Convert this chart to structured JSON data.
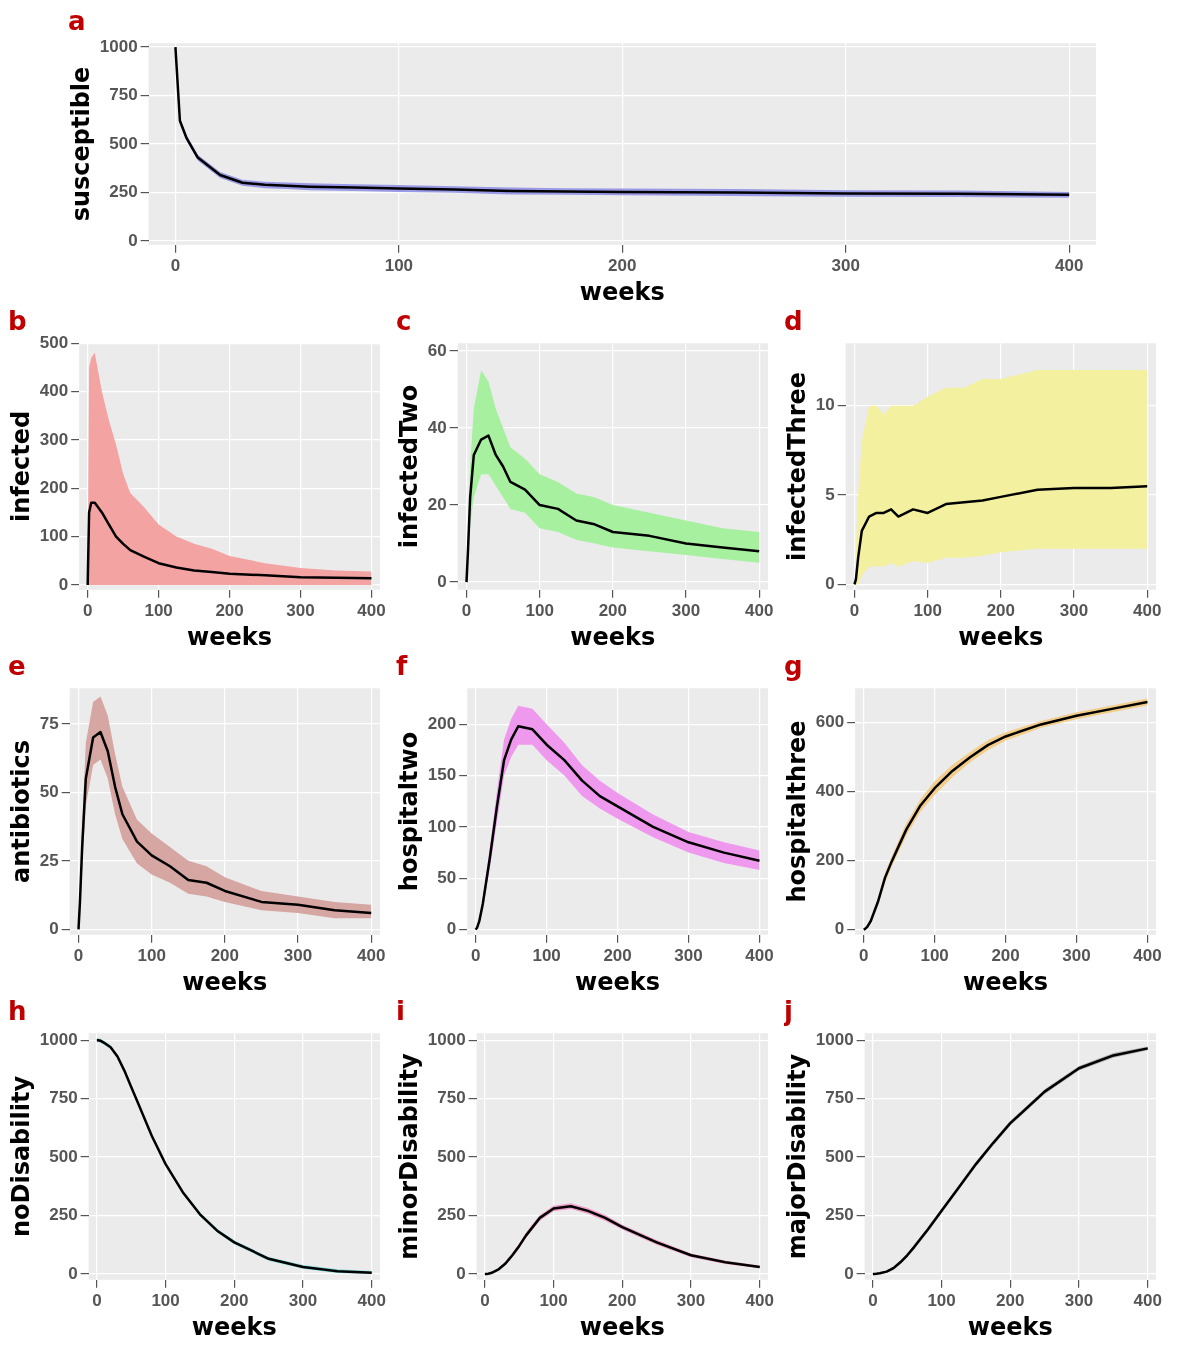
{
  "chart_data": [
    {
      "type": "line",
      "title": "a",
      "xlabel": "weeks",
      "ylabel": "susceptible",
      "x": [
        0,
        2,
        5,
        10,
        20,
        30,
        40,
        50,
        60,
        80,
        100,
        125,
        150,
        175,
        200,
        250,
        300,
        350,
        400
      ],
      "xlim": [
        -12,
        412
      ],
      "xticks": [
        0,
        100,
        200,
        300,
        400
      ],
      "ylim": [
        -20,
        1020
      ],
      "yticks": [
        0,
        250,
        500,
        750,
        1000
      ],
      "grid": true,
      "legend": false,
      "marker": "none",
      "series": [
        {
          "color": "#000000",
          "values": [
            1000,
            620,
            530,
            430,
            340,
            300,
            290,
            285,
            280,
            275,
            270,
            265,
            258,
            255,
            252,
            250,
            245,
            243,
            238
          ],
          "lower": [
            985,
            605,
            515,
            415,
            325,
            285,
            272,
            268,
            262,
            258,
            252,
            248,
            240,
            238,
            235,
            232,
            228,
            226,
            223
          ],
          "upper": [
            1000,
            635,
            545,
            445,
            355,
            315,
            305,
            302,
            298,
            292,
            288,
            282,
            275,
            272,
            270,
            268,
            262,
            260,
            253
          ]
        }
      ]
    },
    {
      "type": "line",
      "title": "b",
      "xlabel": "weeks",
      "ylabel": "infected",
      "x": [
        0,
        2,
        5,
        10,
        20,
        30,
        40,
        50,
        60,
        80,
        100,
        125,
        150,
        175,
        200,
        250,
        300,
        350,
        400
      ],
      "xlim": [
        -12,
        412
      ],
      "xticks": [
        0,
        100,
        200,
        300,
        400
      ],
      "ylim": [
        -10,
        500
      ],
      "yticks": [
        0,
        100,
        200,
        300,
        400,
        500
      ],
      "grid": true,
      "legend": false,
      "marker": "none",
      "series": [
        {
          "color": "#000000",
          "values": [
            0,
            150,
            170,
            170,
            150,
            125,
            100,
            85,
            72,
            58,
            45,
            36,
            30,
            27,
            23,
            20,
            16,
            15,
            14
          ],
          "lower": [
            0,
            0,
            0,
            0,
            0,
            0,
            0,
            0,
            0,
            0,
            0,
            0,
            0,
            0,
            0,
            0,
            0,
            0,
            0
          ],
          "upper": [
            0,
            450,
            470,
            480,
            400,
            340,
            290,
            230,
            190,
            160,
            125,
            100,
            85,
            75,
            60,
            45,
            35,
            30,
            28
          ]
        }
      ]
    },
    {
      "type": "line",
      "title": "c",
      "xlabel": "weeks",
      "ylabel": "infectedTwo",
      "x": [
        0,
        2,
        5,
        10,
        20,
        30,
        40,
        50,
        60,
        80,
        100,
        125,
        150,
        175,
        200,
        250,
        300,
        350,
        400
      ],
      "xlim": [
        -12,
        412
      ],
      "xticks": [
        0,
        100,
        200,
        300,
        400
      ],
      "ylim": [
        -2,
        62
      ],
      "yticks": [
        0,
        20,
        40,
        60
      ],
      "grid": true,
      "legend": false,
      "marker": "none",
      "series": [
        {
          "color": "#000000",
          "values": [
            0,
            8,
            22,
            33,
            37,
            38,
            33,
            30,
            26,
            24,
            20,
            19,
            16,
            15,
            13,
            12,
            10,
            9,
            8
          ],
          "lower": [
            0,
            5,
            15,
            22,
            28,
            28,
            25,
            22,
            19,
            18,
            14,
            13,
            11,
            10,
            9,
            8,
            7,
            6,
            5
          ],
          "upper": [
            0,
            12,
            30,
            45,
            55,
            52,
            45,
            40,
            35,
            32,
            28,
            26,
            23,
            22,
            20,
            18,
            16,
            14,
            13
          ]
        }
      ]
    },
    {
      "type": "line",
      "title": "d",
      "xlabel": "weeks",
      "ylabel": "infectedThree",
      "x": [
        0,
        2,
        5,
        10,
        20,
        30,
        40,
        50,
        60,
        80,
        100,
        125,
        150,
        175,
        200,
        250,
        300,
        350,
        400
      ],
      "xlim": [
        -12,
        412
      ],
      "xticks": [
        0,
        100,
        200,
        300,
        400
      ],
      "ylim": [
        -0.3,
        13.5
      ],
      "yticks": [
        0,
        5,
        10
      ],
      "grid": true,
      "legend": false,
      "marker": "none",
      "series": [
        {
          "color": "#000000",
          "values": [
            0,
            0.3,
            1.5,
            3,
            3.8,
            4,
            4,
            4.2,
            3.8,
            4.2,
            4,
            4.5,
            4.6,
            4.7,
            4.9,
            5.3,
            5.4,
            5.4,
            5.5
          ],
          "lower": [
            0,
            0,
            0,
            0.5,
            1,
            1,
            1,
            1.2,
            1,
            1.3,
            1.2,
            1.5,
            1.5,
            1.6,
            1.8,
            2,
            2,
            2,
            2
          ],
          "upper": [
            0,
            2,
            5,
            8,
            10,
            10,
            9.5,
            10,
            10,
            10,
            10.5,
            11,
            11,
            11.5,
            11.5,
            12,
            12,
            12,
            12
          ]
        }
      ]
    },
    {
      "type": "line",
      "title": "e",
      "xlabel": "weeks",
      "ylabel": "antibiotics",
      "x": [
        0,
        2,
        5,
        10,
        20,
        30,
        40,
        50,
        60,
        80,
        100,
        125,
        150,
        175,
        200,
        250,
        300,
        350,
        400
      ],
      "xlim": [
        -12,
        412
      ],
      "xticks": [
        0,
        100,
        200,
        300,
        400
      ],
      "ylim": [
        -2,
        88
      ],
      "yticks": [
        0,
        25,
        50,
        75
      ],
      "grid": true,
      "legend": false,
      "marker": "none",
      "series": [
        {
          "color": "#000000",
          "values": [
            0,
            10,
            30,
            55,
            70,
            72,
            65,
            52,
            42,
            32,
            27,
            23,
            18,
            17,
            14,
            10,
            9,
            7,
            6
          ],
          "lower": [
            0,
            7,
            22,
            45,
            60,
            62,
            55,
            42,
            33,
            24,
            20,
            17,
            13,
            12,
            10,
            7,
            6,
            4,
            4
          ],
          "upper": [
            0,
            13,
            38,
            68,
            83,
            85,
            78,
            64,
            52,
            40,
            35,
            30,
            25,
            23,
            19,
            14,
            12,
            10,
            9
          ]
        }
      ]
    },
    {
      "type": "line",
      "title": "f",
      "xlabel": "weeks",
      "ylabel": "hospitaltwo",
      "x": [
        0,
        2,
        5,
        10,
        20,
        30,
        40,
        50,
        60,
        80,
        100,
        125,
        150,
        175,
        200,
        250,
        300,
        350,
        400
      ],
      "xlim": [
        -12,
        412
      ],
      "xticks": [
        0,
        100,
        200,
        300,
        400
      ],
      "ylim": [
        -5,
        235
      ],
      "yticks": [
        0,
        50,
        100,
        150,
        200
      ],
      "grid": true,
      "legend": false,
      "marker": "none",
      "series": [
        {
          "color": "#000000",
          "values": [
            0,
            2,
            8,
            25,
            70,
            120,
            165,
            185,
            198,
            195,
            180,
            165,
            145,
            130,
            120,
            100,
            85,
            75,
            67
          ],
          "lower": [
            0,
            1,
            6,
            20,
            60,
            105,
            150,
            168,
            180,
            180,
            165,
            150,
            130,
            118,
            108,
            90,
            75,
            65,
            58
          ],
          "upper": [
            0,
            3,
            10,
            30,
            80,
            135,
            185,
            205,
            218,
            215,
            200,
            182,
            160,
            145,
            133,
            112,
            95,
            85,
            77
          ]
        }
      ]
    },
    {
      "type": "line",
      "title": "g",
      "xlabel": "weeks",
      "ylabel": "hospitalthree",
      "x": [
        0,
        2,
        5,
        10,
        20,
        30,
        40,
        50,
        60,
        80,
        100,
        125,
        150,
        175,
        200,
        250,
        300,
        350,
        400
      ],
      "xlim": [
        -12,
        412
      ],
      "xticks": [
        0,
        100,
        200,
        300,
        400
      ],
      "ylim": [
        -15,
        700
      ],
      "yticks": [
        0,
        200,
        400,
        600
      ],
      "grid": true,
      "legend": false,
      "marker": "none",
      "series": [
        {
          "color": "#000000",
          "values": [
            0,
            2,
            8,
            25,
            80,
            150,
            200,
            245,
            290,
            360,
            410,
            460,
            500,
            535,
            560,
            595,
            620,
            640,
            660
          ],
          "lower": [
            0,
            1,
            6,
            20,
            70,
            135,
            185,
            228,
            272,
            342,
            390,
            442,
            485,
            520,
            548,
            585,
            610,
            630,
            650
          ],
          "upper": [
            0,
            3,
            10,
            30,
            90,
            165,
            215,
            262,
            308,
            378,
            430,
            478,
            515,
            550,
            572,
            605,
            630,
            650,
            670
          ]
        }
      ]
    },
    {
      "type": "line",
      "title": "h",
      "xlabel": "weeks",
      "ylabel": "noDisability",
      "x": [
        0,
        2,
        5,
        10,
        20,
        30,
        40,
        50,
        60,
        80,
        100,
        125,
        150,
        175,
        200,
        250,
        300,
        350,
        400
      ],
      "xlim": [
        -12,
        412
      ],
      "xticks": [
        0,
        100,
        200,
        300,
        400
      ],
      "ylim": [
        -25,
        1030
      ],
      "yticks": [
        0,
        250,
        500,
        750,
        1000
      ],
      "grid": true,
      "legend": false,
      "marker": "none",
      "series": [
        {
          "color": "#000000",
          "values": [
            1000,
            1000,
            998,
            990,
            970,
            930,
            870,
            800,
            730,
            590,
            470,
            350,
            255,
            185,
            135,
            65,
            30,
            12,
            5
          ],
          "lower": [
            992,
            992,
            990,
            982,
            962,
            922,
            862,
            792,
            722,
            582,
            462,
            342,
            247,
            177,
            127,
            57,
            22,
            4,
            0
          ],
          "upper": [
            1008,
            1008,
            1006,
            998,
            978,
            938,
            878,
            808,
            738,
            598,
            478,
            358,
            263,
            193,
            143,
            73,
            38,
            20,
            13
          ]
        }
      ]
    },
    {
      "type": "line",
      "title": "i",
      "xlabel": "weeks",
      "ylabel": "minorDisability",
      "x": [
        0,
        2,
        5,
        10,
        20,
        30,
        40,
        50,
        60,
        80,
        100,
        125,
        150,
        175,
        200,
        250,
        300,
        350,
        400
      ],
      "xlim": [
        -12,
        412
      ],
      "xticks": [
        0,
        100,
        200,
        300,
        400
      ],
      "ylim": [
        -25,
        1030
      ],
      "yticks": [
        0,
        250,
        500,
        750,
        1000
      ],
      "grid": true,
      "legend": false,
      "marker": "none",
      "series": [
        {
          "color": "#000000",
          "values": [
            0,
            0,
            1,
            5,
            20,
            45,
            80,
            120,
            165,
            240,
            280,
            290,
            270,
            240,
            200,
            135,
            80,
            50,
            30
          ],
          "lower": [
            0,
            0,
            0,
            2,
            15,
            38,
            72,
            110,
            155,
            228,
            268,
            278,
            258,
            228,
            190,
            125,
            72,
            43,
            24
          ],
          "upper": [
            0,
            1,
            3,
            9,
            26,
            52,
            90,
            130,
            177,
            252,
            292,
            302,
            282,
            252,
            210,
            145,
            88,
            57,
            36
          ]
        }
      ]
    },
    {
      "type": "line",
      "title": "j",
      "xlabel": "weeks",
      "ylabel": "majorDisability",
      "x": [
        0,
        2,
        5,
        10,
        20,
        30,
        40,
        50,
        60,
        80,
        100,
        125,
        150,
        175,
        200,
        250,
        300,
        350,
        400
      ],
      "xlim": [
        -12,
        412
      ],
      "xticks": [
        0,
        100,
        200,
        300,
        400
      ],
      "ylim": [
        -25,
        1030
      ],
      "yticks": [
        0,
        250,
        500,
        750,
        1000
      ],
      "grid": true,
      "legend": false,
      "marker": "none",
      "series": [
        {
          "color": "#000000",
          "values": [
            0,
            0,
            1,
            3,
            10,
            25,
            50,
            80,
            115,
            190,
            270,
            370,
            470,
            560,
            645,
            780,
            880,
            935,
            965
          ],
          "lower": [
            0,
            0,
            0,
            0,
            5,
            18,
            42,
            72,
            105,
            180,
            260,
            360,
            460,
            550,
            635,
            770,
            870,
            925,
            957
          ],
          "upper": [
            0,
            1,
            3,
            7,
            15,
            32,
            58,
            88,
            125,
            200,
            280,
            380,
            480,
            570,
            655,
            790,
            890,
            945,
            973
          ]
        }
      ]
    }
  ]
}
